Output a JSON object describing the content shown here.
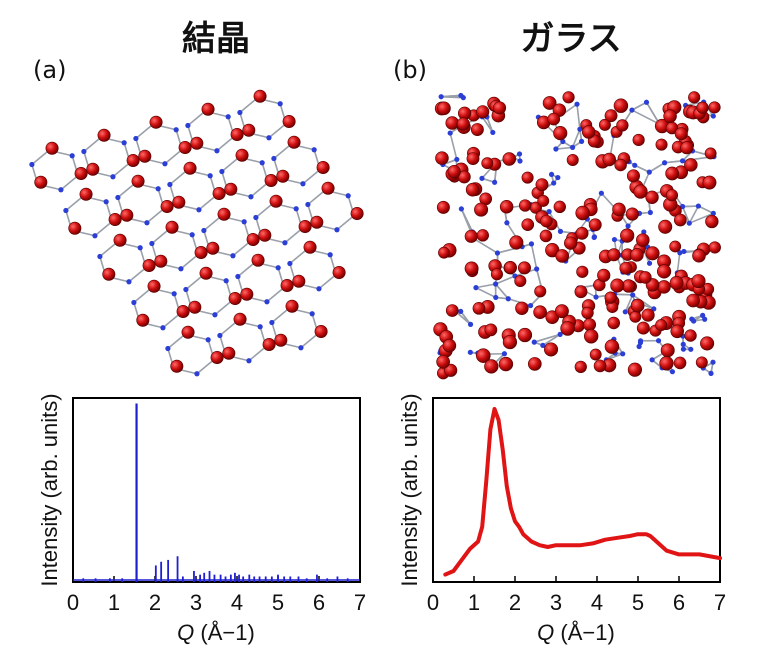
{
  "titles": {
    "left": "結晶",
    "right": "ガラス"
  },
  "panels": {
    "a_label": "(a)",
    "b_label": "(b)"
  },
  "structure_images": [
    {
      "panel": "a",
      "kind": "crystal network",
      "atom_color": "#cc1111",
      "bond_color": "#9aa0aa",
      "node_color": "#2b3fd6"
    },
    {
      "panel": "b",
      "kind": "glass network",
      "atom_color": "#cc1111",
      "bond_color": "#9aa0aa",
      "node_color": "#2b3fd6"
    }
  ],
  "chart_data": [
    {
      "type": "bar",
      "panel": "a",
      "color": "#1f1fd0",
      "xlabel_symbol": "Q",
      "xlabel_unit": "(Å−1)",
      "ylabel": "Intensity (arb. units)",
      "xlim": [
        0,
        7
      ],
      "ylim": [
        0,
        1
      ],
      "xticks": [
        "0",
        "1",
        "2",
        "3",
        "4",
        "5",
        "6",
        "7"
      ],
      "peaks": [
        {
          "q": 0.25,
          "i": 0.02
        },
        {
          "q": 0.55,
          "i": 0.02
        },
        {
          "q": 0.9,
          "i": 0.02
        },
        {
          "q": 1.2,
          "i": 0.02
        },
        {
          "q": 1.55,
          "i": 0.97
        },
        {
          "q": 2.02,
          "i": 0.09
        },
        {
          "q": 2.15,
          "i": 0.11
        },
        {
          "q": 2.32,
          "i": 0.12
        },
        {
          "q": 2.55,
          "i": 0.14
        },
        {
          "q": 2.68,
          "i": 0.03
        },
        {
          "q": 2.95,
          "i": 0.06
        },
        {
          "q": 3.1,
          "i": 0.04
        },
        {
          "q": 3.2,
          "i": 0.05
        },
        {
          "q": 3.33,
          "i": 0.06
        },
        {
          "q": 3.45,
          "i": 0.04
        },
        {
          "q": 3.6,
          "i": 0.04
        },
        {
          "q": 3.72,
          "i": 0.03
        },
        {
          "q": 3.85,
          "i": 0.04
        },
        {
          "q": 3.95,
          "i": 0.05
        },
        {
          "q": 4.05,
          "i": 0.04
        },
        {
          "q": 4.15,
          "i": 0.03
        },
        {
          "q": 4.3,
          "i": 0.04
        },
        {
          "q": 4.42,
          "i": 0.03
        },
        {
          "q": 4.55,
          "i": 0.03
        },
        {
          "q": 4.7,
          "i": 0.03
        },
        {
          "q": 4.85,
          "i": 0.03
        },
        {
          "q": 5.0,
          "i": 0.04
        },
        {
          "q": 5.15,
          "i": 0.03
        },
        {
          "q": 5.3,
          "i": 0.03
        },
        {
          "q": 5.5,
          "i": 0.03
        },
        {
          "q": 5.7,
          "i": 0.02
        },
        {
          "q": 5.95,
          "i": 0.04
        },
        {
          "q": 6.2,
          "i": 0.02
        },
        {
          "q": 6.45,
          "i": 0.03
        },
        {
          "q": 6.7,
          "i": 0.02
        }
      ]
    },
    {
      "type": "line",
      "panel": "b",
      "color": "#e01414",
      "xlabel_symbol": "Q",
      "xlabel_unit": "(Å−1)",
      "ylabel": "Intensity (arb. units)",
      "xlim": [
        0,
        7
      ],
      "ylim": [
        0,
        1
      ],
      "xticks": [
        "0",
        "1",
        "2",
        "3",
        "4",
        "5",
        "6",
        "7"
      ],
      "x": [
        0.3,
        0.5,
        0.7,
        0.9,
        1.1,
        1.2,
        1.3,
        1.4,
        1.5,
        1.6,
        1.7,
        1.8,
        1.9,
        2.0,
        2.1,
        2.2,
        2.4,
        2.6,
        2.8,
        3.0,
        3.3,
        3.6,
        3.9,
        4.2,
        4.5,
        4.8,
        5.0,
        5.2,
        5.3,
        5.5,
        5.7,
        6.0,
        6.5,
        7.0
      ],
      "y": [
        0.04,
        0.06,
        0.12,
        0.18,
        0.22,
        0.3,
        0.55,
        0.83,
        0.94,
        0.88,
        0.72,
        0.52,
        0.4,
        0.33,
        0.3,
        0.26,
        0.22,
        0.2,
        0.19,
        0.2,
        0.2,
        0.2,
        0.21,
        0.23,
        0.24,
        0.25,
        0.26,
        0.26,
        0.25,
        0.21,
        0.17,
        0.15,
        0.15,
        0.13
      ]
    }
  ]
}
